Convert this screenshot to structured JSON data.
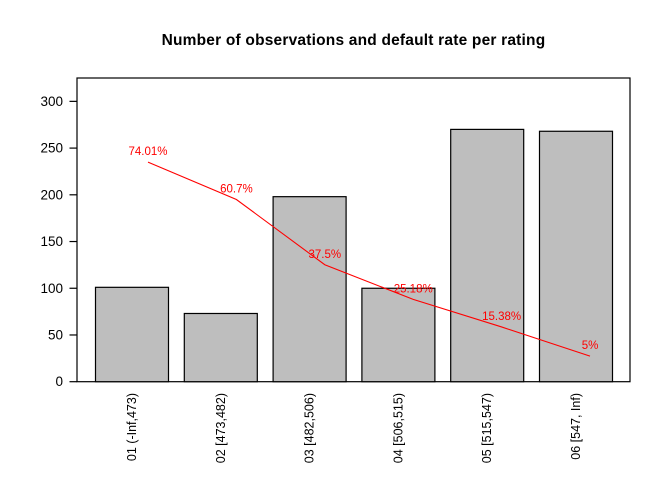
{
  "page": {
    "background": "#ffffff"
  },
  "chart_data": {
    "type": "bar",
    "title": "Number of observations and default rate per rating",
    "categories": [
      "01 (-Inf,473)",
      "02 [473,482)",
      "03 [482,506)",
      "04 [506,515)",
      "05 [515,547)",
      "06 [547, Inf)"
    ],
    "series": [
      {
        "name": "observations",
        "type": "bar",
        "values": [
          101,
          73,
          198,
          100,
          270,
          268
        ],
        "color": "#BEBEBE",
        "border_color": "#000000"
      },
      {
        "name": "default_rate",
        "type": "line",
        "unit": "%",
        "values": [
          74.01,
          60.7,
          37.5,
          25.18,
          15.38,
          5
        ],
        "point_labels": [
          "74.01%",
          "60.7%",
          "37.5%",
          "25.18%",
          "15.38%",
          "5%"
        ],
        "color": "#FF0000"
      }
    ],
    "ylabel": "",
    "xlabel": "",
    "yticks": [
      0,
      50,
      100,
      150,
      200,
      250,
      300
    ],
    "ylim": [
      0,
      325
    ],
    "grid": false,
    "legend": "none",
    "frame": "full-box",
    "text_color": "#000000"
  }
}
